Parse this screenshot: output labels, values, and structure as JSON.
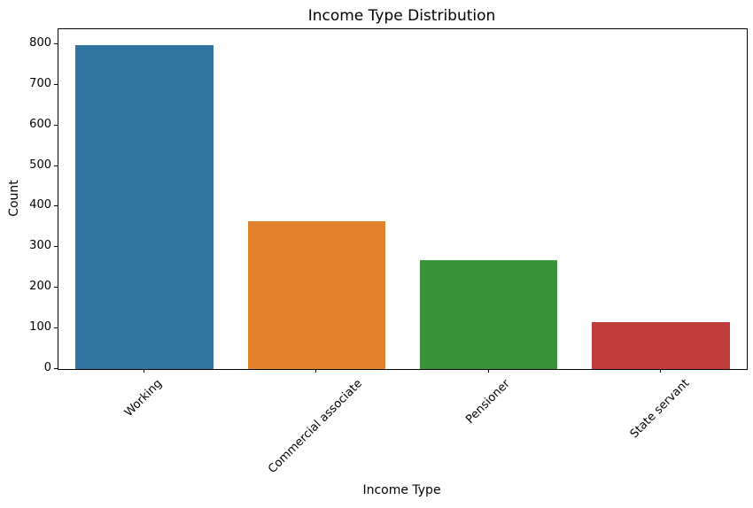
{
  "figure": {
    "background": "#ffffff",
    "text_color": "#000000",
    "axis_color": "#000000"
  },
  "chart_data": {
    "type": "bar",
    "title": "Income Type Distribution",
    "xlabel": "Income Type",
    "ylabel": "Count",
    "categories": [
      "Working",
      "Commercial associate",
      "Pensioner",
      "State servant"
    ],
    "values": [
      797,
      365,
      268,
      115
    ],
    "bar_colors": [
      "#3274a1",
      "#e1812c",
      "#3a923a",
      "#c03d3e"
    ],
    "yticks": [
      0,
      100,
      200,
      300,
      400,
      500,
      600,
      700,
      800
    ],
    "ylim": [
      0,
      837
    ],
    "xtick_rotation_deg": 45,
    "grid": false,
    "legend_position": "none"
  }
}
